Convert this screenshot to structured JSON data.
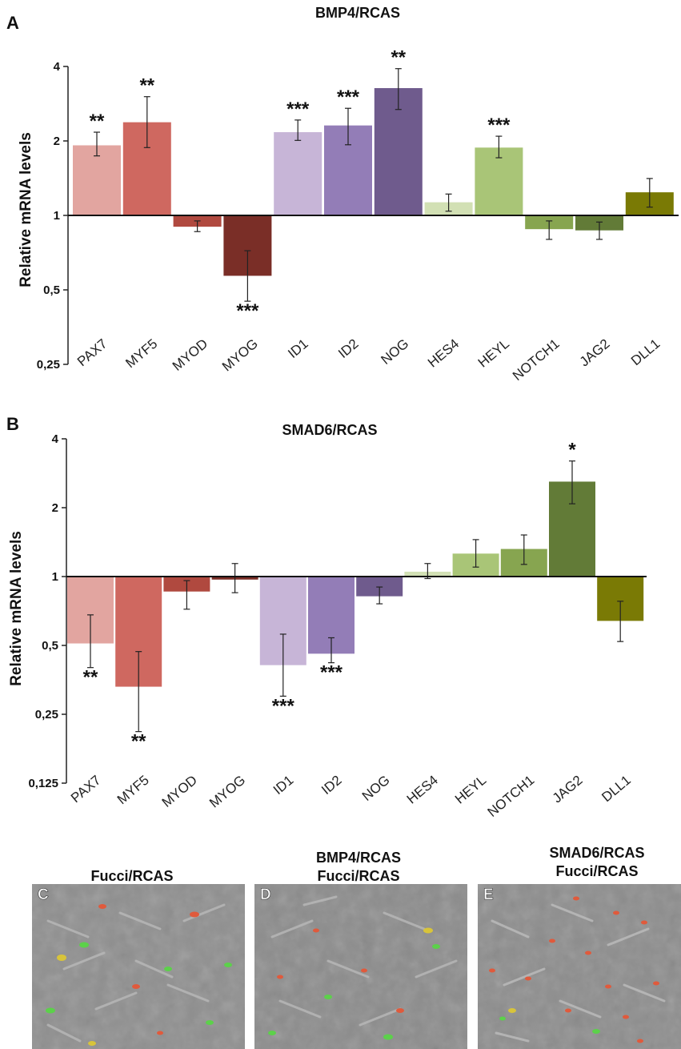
{
  "colors": {
    "PAX7": "#e2a5a0",
    "MYF5": "#cf6860",
    "MYOD": "#b0493f",
    "MYOG": "#7a2e27",
    "ID1": "#c7b5d7",
    "ID2": "#937db7",
    "NOG": "#6f5b8d",
    "HES4": "#d2e0b4",
    "HEYL": "#a9c577",
    "NOTCH1": "#87a550",
    "JAG2": "#627b37",
    "DLL1": "#7a7a05"
  },
  "chart_data": [
    {
      "panel": "A",
      "type": "bar",
      "title": "BMP4/RCAS",
      "ylabel": "Relative mRNA levels",
      "yscale": "log2",
      "ylim": [
        0.25,
        4
      ],
      "yticks": [
        "0,25",
        "0,5",
        "1",
        "2",
        "4"
      ],
      "baseline": 1,
      "categories": [
        "PAX7",
        "MYF5",
        "MYOD",
        "MYOG",
        "ID1",
        "ID2",
        "NOG",
        "HES4",
        "HEYL",
        "NOTCH1",
        "JAG2",
        "DLL1"
      ],
      "values": [
        1.92,
        2.38,
        0.9,
        0.57,
        2.17,
        2.31,
        3.27,
        1.13,
        1.88,
        0.88,
        0.87,
        1.24
      ],
      "err_low": [
        1.74,
        1.88,
        0.86,
        0.45,
        2.01,
        1.93,
        2.68,
        1.04,
        1.71,
        0.8,
        0.8,
        1.08
      ],
      "err_high": [
        2.17,
        3.02,
        0.95,
        0.72,
        2.43,
        2.71,
        3.92,
        1.22,
        2.09,
        0.95,
        0.94,
        1.41
      ],
      "significance": [
        "**",
        "**",
        "",
        "***",
        "***",
        "***",
        "**",
        "",
        "***",
        "",
        "",
        ""
      ]
    },
    {
      "panel": "B",
      "type": "bar",
      "title": "SMAD6/RCAS",
      "ylabel": "Relative mRNA levels",
      "yscale": "log2",
      "ylim": [
        0.125,
        4
      ],
      "yticks": [
        "0,125",
        "0,25",
        "0,5",
        "1",
        "2",
        "4"
      ],
      "baseline": 1,
      "categories": [
        "PAX7",
        "MYF5",
        "MYOD",
        "MYOG",
        "ID1",
        "ID2",
        "NOG",
        "HES4",
        "HEYL",
        "NOTCH1",
        "JAG2",
        "DLL1"
      ],
      "values": [
        0.51,
        0.33,
        0.86,
        0.97,
        0.41,
        0.46,
        0.82,
        1.05,
        1.26,
        1.32,
        2.6,
        0.64
      ],
      "err_low": [
        0.4,
        0.21,
        0.72,
        0.85,
        0.3,
        0.42,
        0.76,
        0.98,
        1.1,
        1.13,
        2.08,
        0.52
      ],
      "err_high": [
        0.68,
        0.47,
        0.96,
        1.14,
        0.56,
        0.54,
        0.9,
        1.14,
        1.45,
        1.52,
        3.2,
        0.78
      ],
      "significance": [
        "**",
        "**",
        "",
        "",
        "***",
        "***",
        "",
        "",
        "",
        "",
        "*",
        ""
      ]
    }
  ],
  "panel_a": {
    "label": "A"
  },
  "panel_b": {
    "label": "B"
  },
  "micrographs": [
    {
      "label": "C",
      "title_lines": [
        "Fucci/RCAS"
      ]
    },
    {
      "label": "D",
      "title_lines": [
        "BMP4/RCAS",
        "Fucci/RCAS"
      ]
    },
    {
      "label": "E",
      "title_lines": [
        "SMAD6/RCAS",
        "Fucci/RCAS"
      ]
    }
  ]
}
